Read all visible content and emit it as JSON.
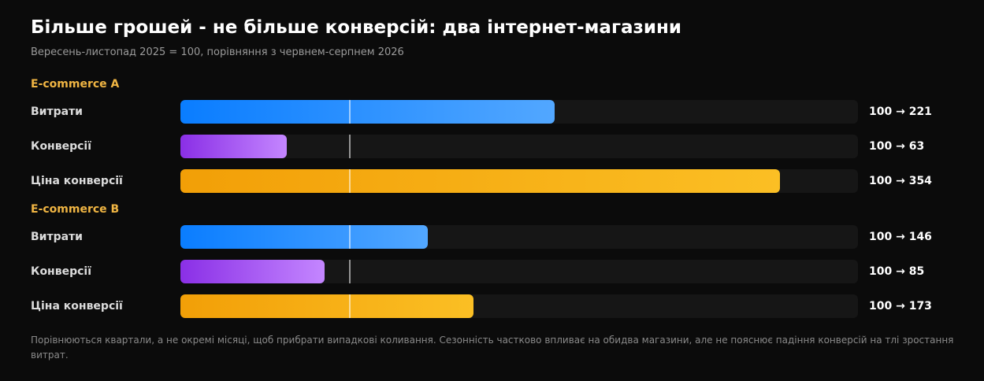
{
  "title": "Більше грошей - не більше конверсій: два інтернет-магазини",
  "subtitle": "Вересень-листопад 2025 = 100, порівняння з червнем-серпнем 2026",
  "footnote": "Порівнюються квартали, а не окремі місяці, щоб прибрати випадкові коливання. Сезонність частково впливає на обидва магазини, але не пояснює падіння конверсій на тлі зростання витрат.",
  "colors": {
    "spend": "#2f8fff",
    "conversions": "#a855f7",
    "cost_per_conversion": "#f59e0b",
    "group_label": "#f0b543"
  },
  "chart_data": {
    "type": "bar",
    "orientation": "horizontal",
    "baseline": 100,
    "xlim": [
      0,
      400
    ],
    "groups": [
      {
        "name": "E-commerce A",
        "rows": [
          {
            "label": "Витрати",
            "from": 100,
            "to": 221,
            "value_text": "100 → 221",
            "color": "blue"
          },
          {
            "label": "Конверсії",
            "from": 100,
            "to": 63,
            "value_text": "100 → 63",
            "color": "purple"
          },
          {
            "label": "Ціна конверсії",
            "from": 100,
            "to": 354,
            "value_text": "100 → 354",
            "color": "orange"
          }
        ]
      },
      {
        "name": "E-commerce B",
        "rows": [
          {
            "label": "Витрати",
            "from": 100,
            "to": 146,
            "value_text": "100 → 146",
            "color": "blue"
          },
          {
            "label": "Конверсії",
            "from": 100,
            "to": 85,
            "value_text": "100 → 85",
            "color": "purple"
          },
          {
            "label": "Ціна конверсії",
            "from": 100,
            "to": 173,
            "value_text": "100 → 173",
            "color": "orange"
          }
        ]
      }
    ]
  }
}
